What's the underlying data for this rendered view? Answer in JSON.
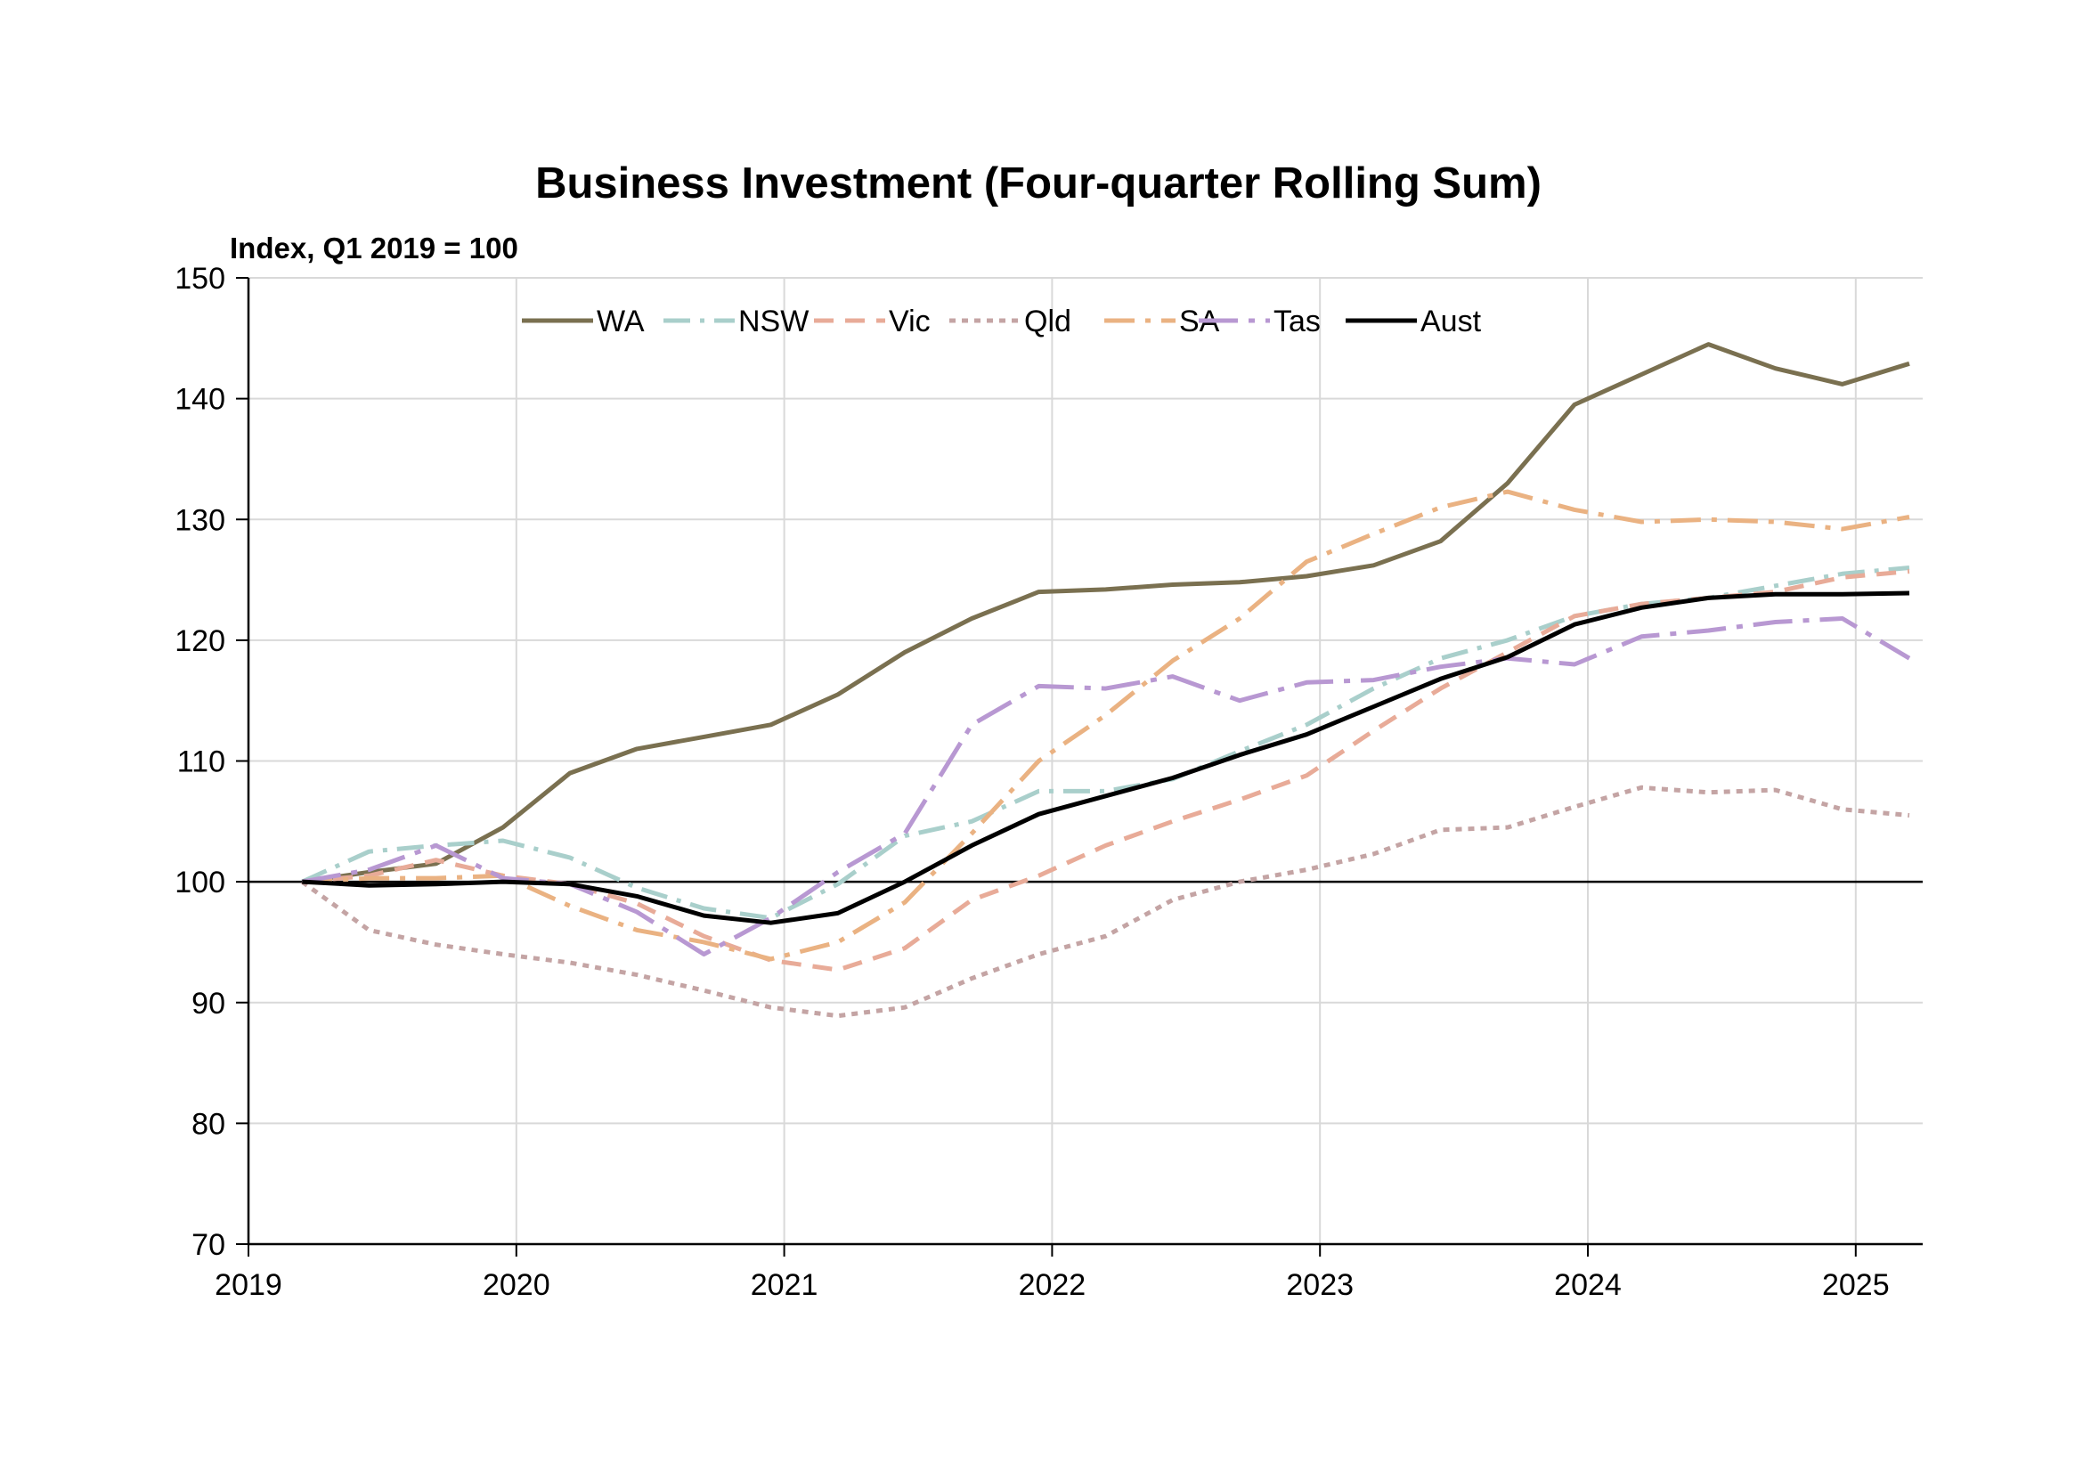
{
  "chart_data": {
    "type": "line",
    "title": "Business Investment (Four-quarter Rolling Sum)",
    "ylabel": "Index, Q1 2019 = 100",
    "xlabel": "",
    "ylim": [
      70,
      150
    ],
    "yticks": [
      70,
      80,
      90,
      100,
      110,
      120,
      130,
      140,
      150
    ],
    "xlim": [
      2019.0,
      2025.25
    ],
    "xticks": [
      "2019",
      "2020",
      "2021",
      "2022",
      "2023",
      "2024",
      "2025"
    ],
    "grid": true,
    "legend_position": "top",
    "reference_line": 100,
    "x": [
      2019.2,
      2019.45,
      2019.7,
      2019.95,
      2020.2,
      2020.45,
      2020.7,
      2020.95,
      2021.2,
      2021.45,
      2021.7,
      2021.95,
      2022.2,
      2022.45,
      2022.7,
      2022.95,
      2023.2,
      2023.45,
      2023.7,
      2023.95,
      2024.2,
      2024.45,
      2024.7,
      2024.95,
      2025.2
    ],
    "series": [
      {
        "name": "WA",
        "color": "#7a7050",
        "dash": "solid",
        "width": 5,
        "values": [
          100,
          100.8,
          101.5,
          104.5,
          109,
          111,
          112,
          113,
          115.5,
          119,
          121.8,
          124,
          124.2,
          124.6,
          124.8,
          125.3,
          126.2,
          128.2,
          133,
          139.5,
          142,
          144.5,
          142.5,
          141.2,
          142.9
        ]
      },
      {
        "name": "NSW",
        "color": "#a9cfcb",
        "dash": "dashdot",
        "width": 5,
        "values": [
          100,
          102.5,
          103,
          103.4,
          102,
          99.5,
          97.8,
          97,
          99.8,
          103.8,
          105,
          107.5,
          107.5,
          108.5,
          110.8,
          113,
          116,
          118.5,
          120,
          122,
          123,
          123.5,
          124.5,
          125.5,
          126
        ]
      },
      {
        "name": "Vic",
        "color": "#e8ab98",
        "dash": "dash",
        "width": 5,
        "values": [
          100,
          100.5,
          101.8,
          100.5,
          99.8,
          98.2,
          95.5,
          93.5,
          92.7,
          94.5,
          98.5,
          100.5,
          103,
          105,
          106.8,
          108.8,
          112.5,
          116,
          119,
          122,
          123,
          123.5,
          124,
          125.2,
          125.7
        ]
      },
      {
        "name": "Qld",
        "color": "#c4a4a4",
        "dash": "dot",
        "width": 5,
        "values": [
          100,
          96,
          94.8,
          94,
          93.3,
          92.3,
          91,
          89.6,
          88.9,
          89.6,
          92,
          94,
          95.5,
          98.5,
          100,
          101,
          102.3,
          104.3,
          104.5,
          106.2,
          107.8,
          107.4,
          107.6,
          106,
          105.5
        ]
      },
      {
        "name": "SA",
        "color": "#eab282",
        "dash": "longdashdot",
        "width": 5,
        "values": [
          100,
          100.3,
          100.3,
          100.5,
          98,
          96,
          95,
          93.6,
          95,
          98.3,
          104,
          110,
          113.8,
          118.3,
          121.8,
          126.5,
          128.8,
          131,
          132.3,
          130.8,
          129.8,
          130,
          129.8,
          129.2,
          130.2
        ]
      },
      {
        "name": "Tas",
        "color": "#b898d2",
        "dash": "dashdotlong",
        "width": 5,
        "values": [
          100,
          101,
          103,
          100.3,
          99.8,
          97.5,
          94,
          97,
          100.8,
          104,
          113,
          116.2,
          116,
          117,
          115,
          116.5,
          116.7,
          117.8,
          118.5,
          118,
          120.3,
          120.8,
          121.5,
          121.8,
          118.5
        ]
      },
      {
        "name": "Aust",
        "color": "#000000",
        "dash": "solid",
        "width": 5,
        "values": [
          100,
          99.7,
          99.8,
          100,
          99.8,
          98.8,
          97.2,
          96.6,
          97.4,
          100,
          103,
          105.6,
          107.1,
          108.6,
          110.5,
          112.2,
          114.5,
          116.8,
          118.6,
          121.3,
          122.7,
          123.5,
          123.8,
          123.8,
          123.9
        ]
      }
    ]
  }
}
